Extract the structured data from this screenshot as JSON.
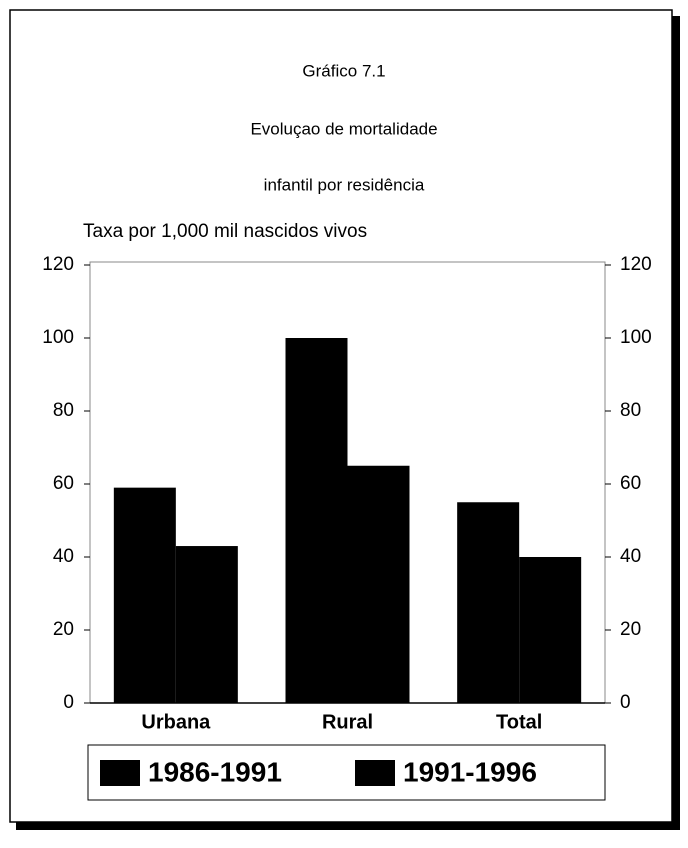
{
  "chart_data": {
    "type": "bar",
    "title": "Gráfico 7.1",
    "subtitle": [
      "Evoluçao de mortalidade",
      "infantil por residência"
    ],
    "ylabel": "Taxa por 1,000 mil nascidos vivos",
    "categories": [
      "Urbana",
      "Rural",
      "Total"
    ],
    "series": [
      {
        "name": "1986-1991",
        "color": "#000000",
        "values": [
          59,
          100,
          55
        ]
      },
      {
        "name": "1991-1996",
        "color": "#000000",
        "values": [
          43,
          65,
          40
        ]
      }
    ],
    "ylim": [
      0,
      120
    ],
    "yticks": [
      0,
      20,
      40,
      60,
      80,
      100,
      120
    ],
    "y2lim": [
      0,
      120
    ],
    "y2ticks": [
      0,
      20,
      40,
      60,
      80,
      100,
      120
    ],
    "legend": "bottom"
  }
}
